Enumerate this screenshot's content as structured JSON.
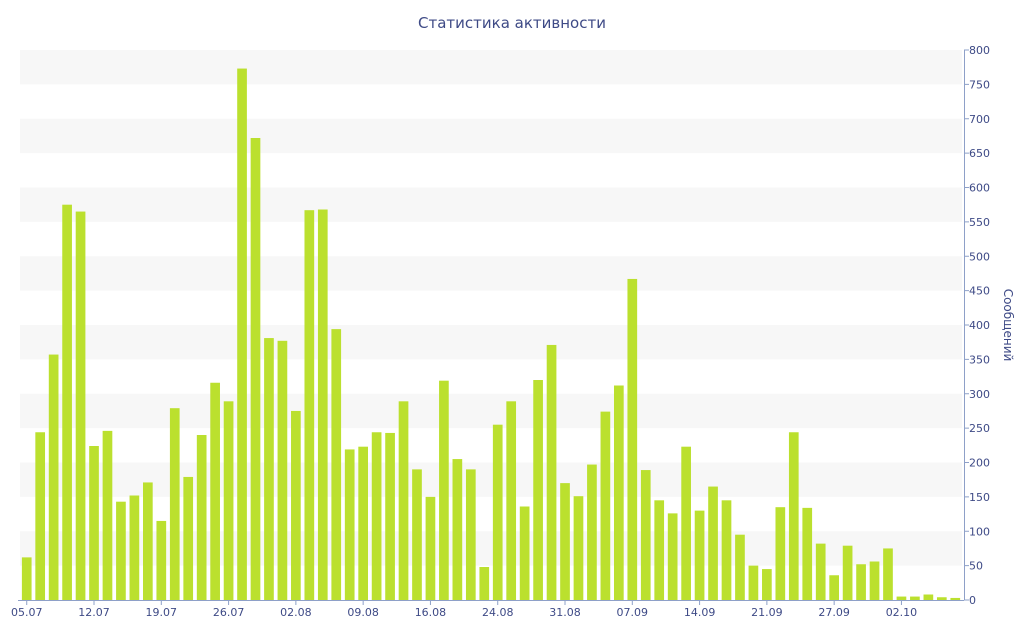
{
  "chart_data": {
    "type": "bar",
    "title": "Статистика активности",
    "xlabel": "",
    "ylabel": "Сообщений",
    "ylim": [
      0,
      800
    ],
    "y_ticks": [
      0,
      50,
      100,
      150,
      200,
      250,
      300,
      350,
      400,
      450,
      500,
      550,
      600,
      650,
      700,
      750,
      800
    ],
    "y_axis_position": "right",
    "grid": "alternating horizontal bands",
    "x_tick_labels": [
      "05.07",
      "12.07",
      "19.07",
      "26.07",
      "02.08",
      "09.08",
      "16.08",
      "24.08",
      "31.08",
      "07.09",
      "14.09",
      "21.09",
      "27.09",
      "02.10"
    ],
    "bar_color": "#bbe02e",
    "band_color": "#f7f7f7",
    "axis_text_color": "#3e4a86",
    "values": [
      62,
      244,
      357,
      575,
      565,
      224,
      246,
      143,
      152,
      171,
      115,
      279,
      179,
      240,
      316,
      289,
      773,
      672,
      381,
      377,
      275,
      567,
      568,
      394,
      219,
      223,
      244,
      243,
      289,
      190,
      150,
      319,
      205,
      190,
      48,
      255,
      289,
      136,
      320,
      371,
      170,
      151,
      197,
      274,
      312,
      467,
      189,
      145,
      126,
      223,
      130,
      165,
      145,
      95,
      50,
      45,
      135,
      244,
      134,
      82,
      36,
      79,
      52,
      56,
      75,
      5,
      5,
      8,
      4,
      3
    ]
  }
}
